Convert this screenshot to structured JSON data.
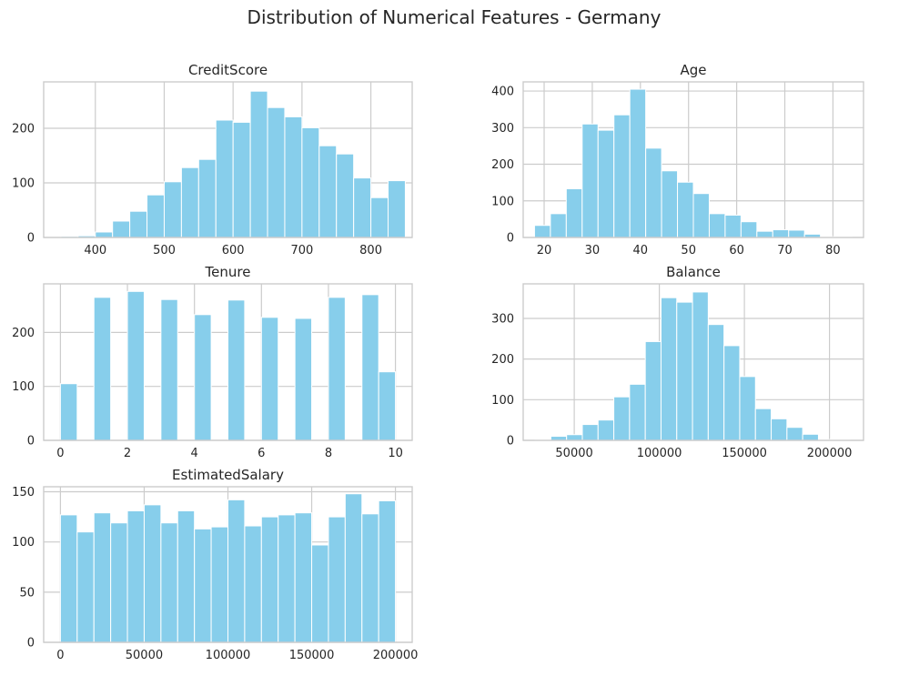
{
  "figure": {
    "title": "Distribution of Numerical Features - Germany",
    "bar_color": "#87ceeb",
    "edge_color": "#ffffff",
    "grid_color": "#cccccc"
  },
  "chart_data": [
    {
      "type": "bar",
      "subtype": "histogram",
      "title": "CreditScore",
      "xlim": [
        325,
        860
      ],
      "ylim": [
        0,
        285
      ],
      "xticks": [
        400,
        500,
        600,
        700,
        800
      ],
      "yticks": [
        0,
        100,
        200
      ],
      "grid": true,
      "bin_start": 350,
      "bin_width": 25,
      "values": [
        2,
        3,
        10,
        30,
        48,
        78,
        102,
        128,
        143,
        215,
        211,
        268,
        238,
        221,
        201,
        168,
        153,
        109,
        73,
        104
      ]
    },
    {
      "type": "bar",
      "subtype": "histogram",
      "title": "Age",
      "xlim": [
        15.65,
        86.35
      ],
      "ylim": [
        0,
        425
      ],
      "xticks": [
        20,
        30,
        40,
        50,
        60,
        70,
        80
      ],
      "yticks": [
        0,
        100,
        200,
        300,
        400
      ],
      "grid": true,
      "bin_start": 18,
      "bin_width": 3.3,
      "values": [
        33,
        65,
        133,
        310,
        293,
        335,
        405,
        244,
        182,
        151,
        120,
        65,
        61,
        43,
        17,
        21,
        20,
        9,
        2,
        1
      ]
    },
    {
      "type": "bar",
      "subtype": "histogram",
      "title": "Tenure",
      "xlim": [
        -0.5,
        10.5
      ],
      "ylim": [
        0,
        290
      ],
      "xticks": [
        0,
        2,
        4,
        6,
        8,
        10
      ],
      "yticks": [
        0,
        100,
        200
      ],
      "grid": true,
      "bin_start": 0,
      "bin_width": 0.5,
      "values": [
        105,
        0,
        265,
        0,
        276,
        0,
        261,
        0,
        233,
        0,
        260,
        0,
        228,
        0,
        226,
        0,
        265,
        0,
        270,
        127
      ]
    },
    {
      "type": "bar",
      "subtype": "histogram",
      "title": "Balance",
      "xlim": [
        20000,
        220000
      ],
      "ylim": [
        0,
        385
      ],
      "xticks": [
        50000,
        100000,
        150000,
        200000
      ],
      "yticks": [
        0,
        100,
        200,
        300
      ],
      "grid": true,
      "bin_start": 27000,
      "bin_width": 9250,
      "values": [
        2,
        10,
        14,
        39,
        50,
        107,
        138,
        243,
        351,
        340,
        365,
        285,
        233,
        157,
        78,
        53,
        32,
        15,
        2,
        1
      ]
    },
    {
      "type": "bar",
      "subtype": "histogram",
      "title": "EstimatedSalary",
      "xlim": [
        -10000,
        210000
      ],
      "ylim": [
        0,
        155
      ],
      "xticks": [
        0,
        50000,
        100000,
        150000,
        200000
      ],
      "yticks": [
        0,
        50,
        100,
        150
      ],
      "grid": true,
      "bin_start": 0,
      "bin_width": 10000,
      "values": [
        127,
        110,
        129,
        119,
        131,
        137,
        119,
        131,
        113,
        115,
        142,
        116,
        125,
        127,
        129,
        97,
        125,
        148,
        128,
        141
      ]
    }
  ]
}
